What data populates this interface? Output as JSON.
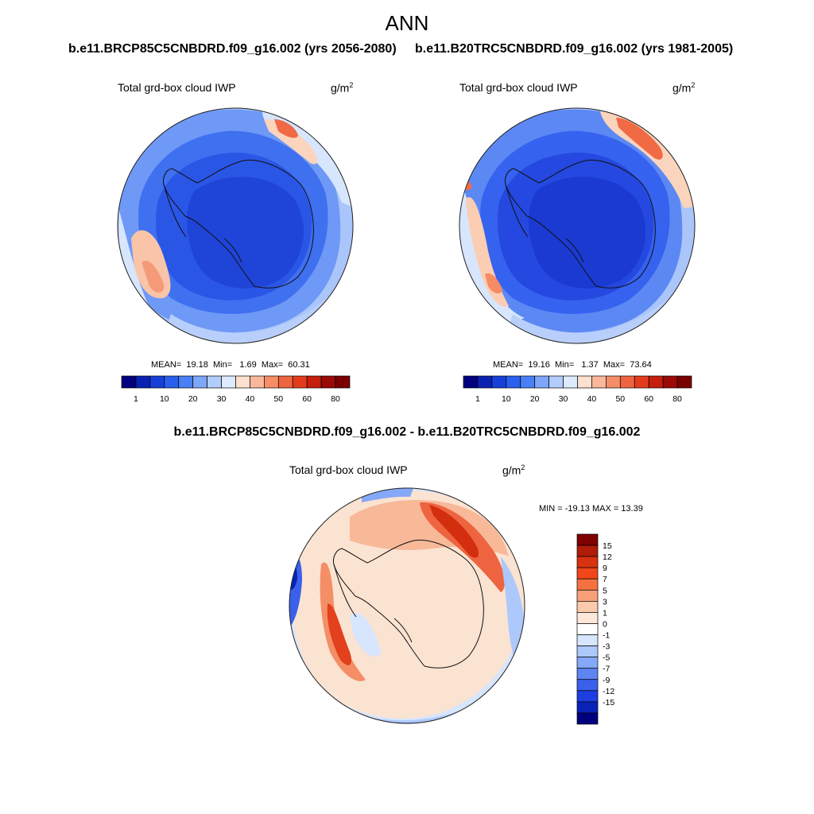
{
  "figure": {
    "title": "ANN"
  },
  "panels": [
    {
      "id": "future",
      "case": "b.e11.BRCP85C5CNBDRD.f09_g16.002 (yrs 2056-2080)",
      "variable": "Total grd-box cloud IWP",
      "units_base": "g/m",
      "units_exp": "2",
      "stats": {
        "mean_label": "MEAN=",
        "mean": "19.18",
        "min_label": "Min=",
        "min": "1.69",
        "max_label": "Max=",
        "max": "60.31"
      }
    },
    {
      "id": "historical",
      "case": "b.e11.B20TRC5CNBDRD.f09_g16.002 (yrs 1981-2005)",
      "variable": "Total grd-box cloud IWP",
      "units_base": "g/m",
      "units_exp": "2",
      "stats": {
        "mean_label": "MEAN=",
        "mean": "19.16",
        "min_label": "Min=",
        "min": "1.37",
        "max_label": "Max=",
        "max": "73.64"
      }
    }
  ],
  "abs_colorbar": {
    "colors": [
      "#00007f",
      "#0a22b2",
      "#1640d8",
      "#2a60ee",
      "#4a80f6",
      "#7ea6f9",
      "#b2ccfb",
      "#dcebfd",
      "#fde0cf",
      "#f9b89b",
      "#f58e67",
      "#ef6440",
      "#e43b1d",
      "#c51e0c",
      "#9b0a05",
      "#7a0000"
    ],
    "tick_labels": [
      "1",
      "10",
      "20",
      "30",
      "40",
      "50",
      "60",
      "80"
    ],
    "tick_positions": [
      1,
      3,
      5,
      7,
      9,
      11,
      13,
      15
    ]
  },
  "difference": {
    "title": "b.e11.BRCP85C5CNBDRD.f09_g16.002 - b.e11.B20TRC5CNBDRD.f09_g16.002",
    "variable": "Total grd-box cloud IWP",
    "units_base": "g/m",
    "units_exp": "2",
    "minmax": "MIN = -19.13 MAX =  13.39",
    "colorbar": {
      "colors": [
        "#7f0000",
        "#b01c08",
        "#d8320f",
        "#f0461a",
        "#f57240",
        "#f8a07a",
        "#fbcaaa",
        "#fde7d8",
        "#ffffff",
        "#d7e6fd",
        "#adc8fb",
        "#86a8f8",
        "#5d84f3",
        "#3a60ec",
        "#1d3ee0",
        "#0a22b6",
        "#00007f"
      ],
      "tick_labels": [
        "15",
        "12",
        "9",
        "7",
        "5",
        "3",
        "1",
        "0",
        "-1",
        "-3",
        "-5",
        "-7",
        "-9",
        "-12",
        "-15"
      ]
    }
  }
}
